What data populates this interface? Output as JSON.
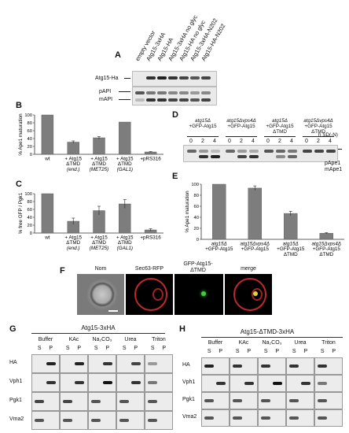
{
  "panels": {
    "A": "A",
    "B": "B",
    "C": "C",
    "D": "D",
    "E": "E",
    "F": "F",
    "G": "G",
    "H": "H"
  },
  "panelA": {
    "lanes": [
      "empty vector",
      "Atg15-3xHA",
      "Atg15-HA",
      "Atg15-3xHA no glyc",
      "Atg15-HA no glyc",
      "Atg15-3xHA-N202",
      "Atg15-HA-N202"
    ],
    "rows": [
      "Atg15-Ha",
      "pAPI",
      "mAPI"
    ]
  },
  "panelD": {
    "groups": [
      [
        "atg15Δ",
        "+GFP-Atg15",
        ""
      ],
      [
        "atg15Δvps4Δ",
        "+GFP-Atg15",
        ""
      ],
      [
        "atg15Δ",
        "+GFP-Atg15",
        "ΔTMD"
      ],
      [
        "atg15Δvps4Δ",
        "+GFP-Atg15",
        "ΔTMD"
      ]
    ],
    "times": [
      "0",
      "2",
      "4"
    ],
    "time_unit": "h SD(-N)",
    "bands": [
      "pApe1",
      "mApe1"
    ]
  },
  "panelF": {
    "labels": [
      "Nom",
      "Sec63-RFP",
      "GFP-Atg15-",
      "ΔTMD",
      "merge"
    ]
  },
  "panelG": {
    "title": "Atg15-3xHA",
    "conditions": [
      "Buffer",
      "KAc",
      "Na₂CO₃",
      "Urea",
      "Triton"
    ],
    "fractions": [
      "S",
      "P"
    ],
    "rows": [
      "HA",
      "Vph1",
      "Pgk1",
      "Vma2"
    ]
  },
  "panelH": {
    "title": "Atg15-ΔTMD-3xHA",
    "conditions": [
      "Buffer",
      "KAc",
      "Na₂CO₃",
      "Urea",
      "Triton"
    ],
    "fractions": [
      "S",
      "P"
    ],
    "rows": [
      "HA",
      "Vph1",
      "Pgk1",
      "Vma2"
    ]
  },
  "chart_data": [
    {
      "panel": "B",
      "type": "bar",
      "ylabel": "% Ape1 maturation",
      "ylim": [
        0,
        100
      ],
      "yticks": [
        0,
        20,
        40,
        60,
        80,
        100
      ],
      "categories": [
        [
          "wt"
        ],
        [
          "+ Atg15",
          "ΔTMD",
          "(end.)"
        ],
        [
          "+ Atg15",
          "ΔTMD",
          "(MET25)"
        ],
        [
          "+ Atg15",
          "ΔTMD",
          "(GAL1)"
        ],
        [
          "+pRS316"
        ]
      ],
      "values": [
        100,
        31,
        42,
        82,
        6
      ],
      "errors": [
        0,
        3,
        3,
        0,
        1
      ]
    },
    {
      "panel": "C",
      "type": "bar",
      "ylabel": "% free GFP / Pgk1",
      "ylim": [
        0,
        100
      ],
      "yticks": [
        0,
        20,
        40,
        60,
        80,
        100
      ],
      "categories": [
        [
          "wt"
        ],
        [
          "+ Atg15",
          "ΔTMD",
          "(end.)"
        ],
        [
          "+ Atg15",
          "ΔTMD",
          "(MET25)"
        ],
        [
          "+ Atg15",
          "ΔTMD",
          "(GAL1)"
        ],
        [
          "+pRS316"
        ]
      ],
      "values": [
        100,
        30,
        57,
        74,
        8
      ],
      "errors": [
        0,
        8,
        11,
        11,
        3
      ]
    },
    {
      "panel": "E",
      "type": "bar",
      "ylabel": "% Ape1 maturation",
      "ylim": [
        0,
        100
      ],
      "yticks": [
        0,
        20,
        40,
        60,
        80,
        100
      ],
      "categories": [
        [
          "atg15Δ",
          "+GFP-Atg15"
        ],
        [
          "atg15Δvps4Δ",
          "+GFP-Atg15"
        ],
        [
          "atg15Δ",
          "+GFP-Atg15",
          "ΔTMD"
        ],
        [
          "atg15Δvps4Δ",
          "+GFP-Atg15",
          "ΔTMD"
        ]
      ],
      "values": [
        100,
        93,
        47,
        11
      ],
      "errors": [
        0,
        4,
        4,
        1
      ]
    }
  ]
}
